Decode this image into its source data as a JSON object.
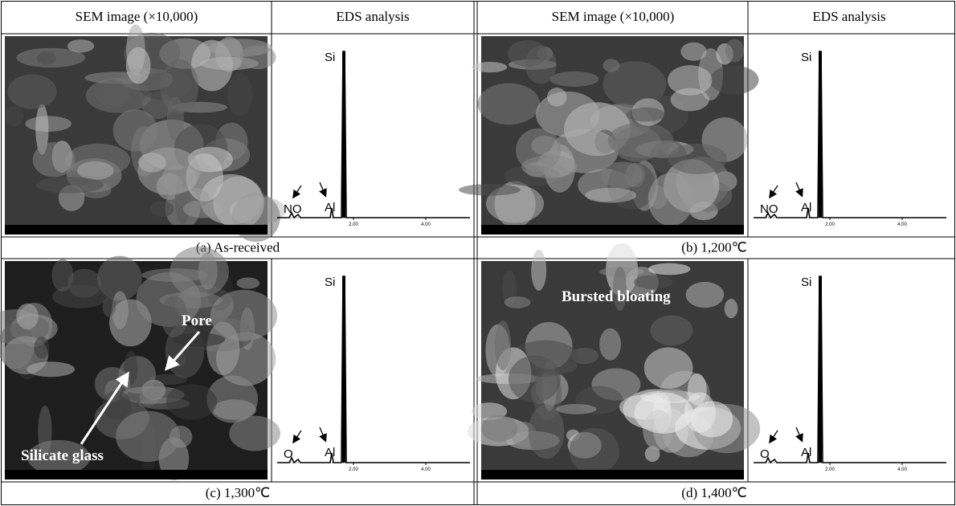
{
  "headers": [
    {
      "sem": "SEM image (×10,000)",
      "eds": "EDS analysis"
    },
    {
      "sem": "SEM image (×10,000)",
      "eds": "EDS analysis"
    }
  ],
  "panels": [
    {
      "caption": "(a) As-received",
      "sem_labels": [],
      "eds": {
        "si": "Si",
        "al": "Al",
        "light": "NO",
        "ticks": [
          "2.00",
          "4.00"
        ]
      }
    },
    {
      "caption": "(b) 1,200℃",
      "sem_labels": [],
      "eds": {
        "si": "Si",
        "al": "Al",
        "light": "NO",
        "ticks": [
          "2.00",
          "4.00"
        ]
      }
    },
    {
      "caption": "(c) 1,300℃",
      "sem_labels": [
        "Pore",
        "Silicate glass"
      ],
      "eds": {
        "si": "Si",
        "al": "Al",
        "light": "O",
        "ticks": [
          "2.00",
          "4.00"
        ]
      }
    },
    {
      "caption": "(d) 1,400℃",
      "sem_labels": [
        "Bursted bloating"
      ],
      "eds": {
        "si": "Si",
        "al": "Al",
        "light": "O",
        "ticks": [
          "2.00",
          "4.00"
        ]
      }
    }
  ]
}
